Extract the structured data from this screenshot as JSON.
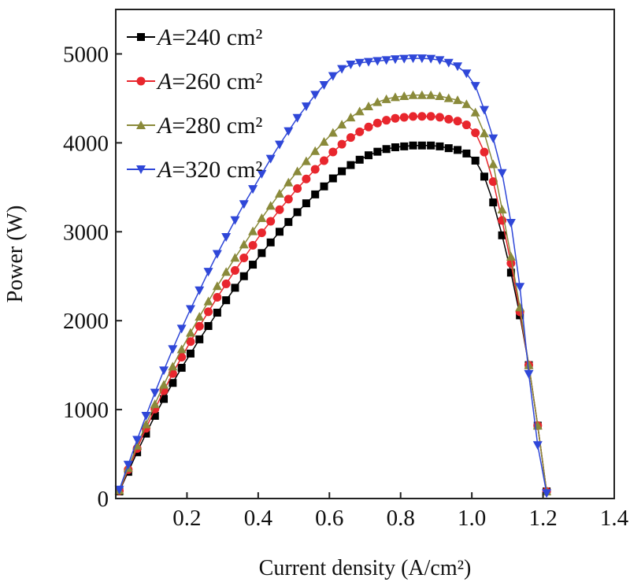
{
  "chart_data": {
    "type": "line",
    "title": "",
    "xlabel": "Current density (A/cm²)",
    "ylabel": "Power (W)",
    "xlim": [
      0,
      1.4
    ],
    "ylim": [
      0,
      5500
    ],
    "xticks": [
      0.2,
      0.4,
      0.6,
      0.8,
      1.0,
      1.2,
      1.4
    ],
    "xtick_labels": [
      "0.2",
      "0.4",
      "0.6",
      "0.8",
      "1.0",
      "1.2",
      "1.4"
    ],
    "yticks": [
      0,
      1000,
      2000,
      3000,
      4000,
      5000
    ],
    "ytick_labels": [
      "0",
      "1000",
      "2000",
      "3000",
      "4000",
      "5000"
    ],
    "legend_position": "top-left",
    "x": [
      0.01,
      0.035,
      0.06,
      0.085,
      0.11,
      0.135,
      0.16,
      0.185,
      0.21,
      0.235,
      0.26,
      0.285,
      0.31,
      0.335,
      0.36,
      0.385,
      0.41,
      0.435,
      0.46,
      0.485,
      0.51,
      0.535,
      0.56,
      0.585,
      0.61,
      0.635,
      0.66,
      0.685,
      0.71,
      0.735,
      0.76,
      0.785,
      0.81,
      0.835,
      0.86,
      0.885,
      0.91,
      0.935,
      0.96,
      0.985,
      1.01,
      1.035,
      1.06,
      1.085,
      1.11,
      1.135,
      1.16,
      1.185,
      1.21
    ],
    "series": [
      {
        "name": "A=240 cm²",
        "italic": "A",
        "rest": "=240 cm²",
        "color": "#000000",
        "marker": "square",
        "values": [
          80,
          300,
          520,
          730,
          930,
          1120,
          1300,
          1470,
          1630,
          1790,
          1940,
          2090,
          2230,
          2370,
          2500,
          2630,
          2760,
          2880,
          3000,
          3110,
          3220,
          3320,
          3420,
          3510,
          3600,
          3680,
          3750,
          3810,
          3860,
          3900,
          3930,
          3950,
          3960,
          3970,
          3970,
          3970,
          3960,
          3940,
          3920,
          3880,
          3800,
          3620,
          3330,
          2960,
          2540,
          2060,
          1500,
          820,
          80
        ]
      },
      {
        "name": "A=260 cm²",
        "italic": "A",
        "rest": "=260 cm²",
        "color": "#e8262d",
        "marker": "circle",
        "values": [
          86,
          325,
          563,
          790,
          1006,
          1212,
          1406,
          1590,
          1765,
          1937,
          2100,
          2263,
          2414,
          2565,
          2706,
          2847,
          2988,
          3118,
          3248,
          3367,
          3486,
          3594,
          3702,
          3800,
          3897,
          3984,
          4060,
          4124,
          4178,
          4222,
          4254,
          4276,
          4287,
          4297,
          4298,
          4298,
          4288,
          4266,
          4245,
          4202,
          4113,
          3896,
          3564,
          3127,
          2646,
          2100,
          1500,
          820,
          80
        ]
      },
      {
        "name": "A=280 cm²",
        "italic": "A",
        "rest": "=280 cm²",
        "color": "#8a8a3a",
        "marker": "triangle-up",
        "values": [
          91,
          343,
          594,
          834,
          1062,
          1280,
          1485,
          1678,
          1864,
          2045,
          2217,
          2389,
          2548,
          2708,
          2857,
          3006,
          3154,
          3292,
          3429,
          3555,
          3680,
          3794,
          3908,
          4012,
          4114,
          4206,
          4286,
          4354,
          4411,
          4458,
          4491,
          4514,
          4526,
          4537,
          4537,
          4537,
          4526,
          4503,
          4480,
          4435,
          4342,
          4107,
          3760,
          3250,
          2720,
          2150,
          1500,
          820,
          80
        ]
      },
      {
        "name": "A=320 cm²",
        "italic": "A",
        "rest": "=320 cm²",
        "color": "#2f47d8",
        "marker": "triangle-down",
        "values": [
          100,
          380,
          660,
          930,
          1190,
          1440,
          1680,
          1910,
          2130,
          2340,
          2550,
          2750,
          2940,
          3130,
          3310,
          3480,
          3650,
          3820,
          3980,
          4130,
          4280,
          4410,
          4540,
          4650,
          4750,
          4830,
          4880,
          4900,
          4910,
          4920,
          4930,
          4940,
          4945,
          4950,
          4950,
          4945,
          4930,
          4900,
          4860,
          4780,
          4640,
          4370,
          4050,
          3660,
          3100,
          2380,
          1400,
          600,
          60
        ]
      }
    ]
  }
}
